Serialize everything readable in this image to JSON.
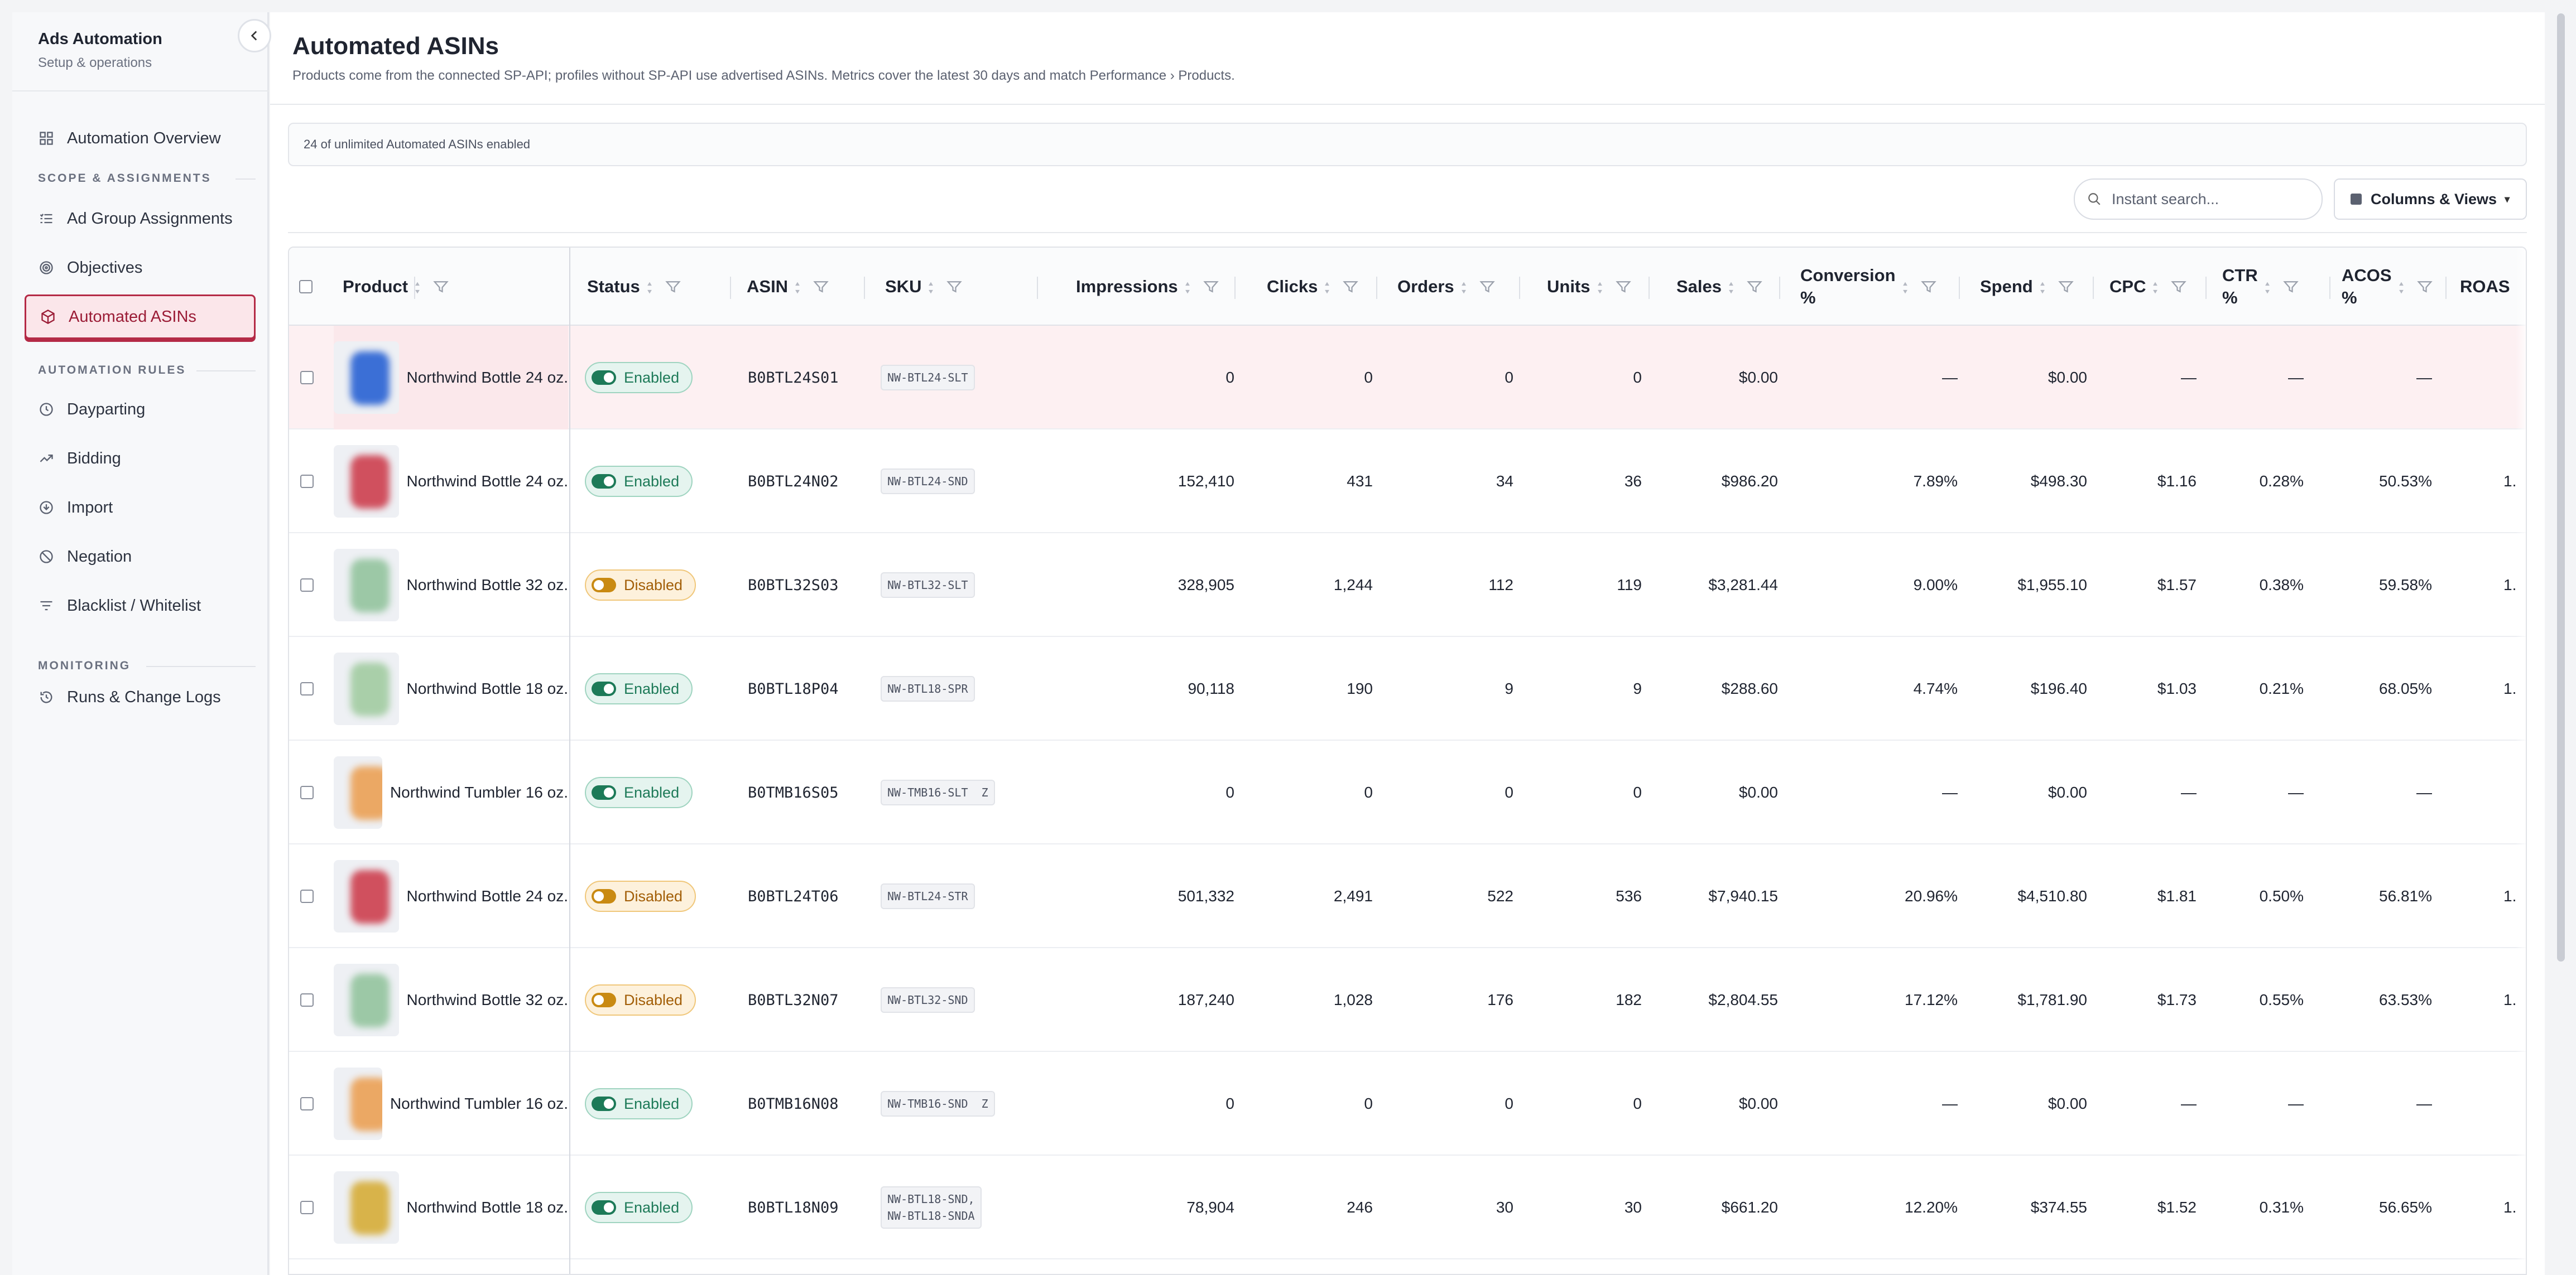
{
  "sidebar": {
    "title": "Ads Automation",
    "subtitle": "Setup & operations",
    "items": [
      {
        "label": "Automation Overview",
        "icon": "grid-icon"
      },
      {
        "label": "Ad Group Assignments",
        "icon": "list-icon"
      },
      {
        "label": "Objectives",
        "icon": "target-icon"
      },
      {
        "label": "Automated ASINs",
        "icon": "box-icon"
      },
      {
        "label": "Dayparting",
        "icon": "clock-icon"
      },
      {
        "label": "Bidding",
        "icon": "trend-icon"
      },
      {
        "label": "Import",
        "icon": "import-icon"
      },
      {
        "label": "Negation",
        "icon": "ban-icon"
      },
      {
        "label": "Blacklist / Whitelist",
        "icon": "filter-icon"
      },
      {
        "label": "Runs & Change Logs",
        "icon": "history-icon"
      }
    ],
    "sections": {
      "scope": "SCOPE & ASSIGNMENTS",
      "rules": "AUTOMATION RULES",
      "monitoring": "MONITORING"
    }
  },
  "page": {
    "title": "Automated ASINs",
    "subtitle": "Products come from the connected SP-API; profiles without SP-API use advertised ASINs. Metrics cover the latest 30 days and match Performance › Products."
  },
  "quota_text": "24 of unlimited Automated ASINs enabled",
  "search": {
    "placeholder": "Instant search..."
  },
  "columns_button": "Columns & Views",
  "table": {
    "headers": {
      "product": "Product",
      "status": "Status",
      "asin": "ASIN",
      "sku": "SKU",
      "impressions": "Impressions",
      "clicks": "Clicks",
      "orders": "Orders",
      "units": "Units",
      "sales": "Sales",
      "conversion_a": "Conversion",
      "conversion_b": "%",
      "spend": "Spend",
      "cpc": "CPC",
      "ctr_a": "CTR",
      "ctr_b": "%",
      "acos_a": "ACOS",
      "acos_b": "%",
      "roas": "ROAS"
    },
    "rows": [
      {
        "product": "Northwind Bottle 24 oz.",
        "status": "Enabled",
        "asin": "B0BTL24S01",
        "sku": "NW-BTL24-SLT",
        "impressions": "0",
        "clicks": "0",
        "orders": "0",
        "units": "0",
        "sales": "$0.00",
        "conversion": "—",
        "spend": "$0.00",
        "cpc": "—",
        "ctr": "—",
        "acos": "—",
        "roas": "",
        "thumb": "#3b6fd6"
      },
      {
        "product": "Northwind Bottle 24 oz.",
        "status": "Enabled",
        "asin": "B0BTL24N02",
        "sku": "NW-BTL24-SND",
        "impressions": "152,410",
        "clicks": "431",
        "orders": "34",
        "units": "36",
        "sales": "$986.20",
        "conversion": "7.89%",
        "spend": "$498.30",
        "cpc": "$1.16",
        "ctr": "0.28%",
        "acos": "50.53%",
        "roas": "1.",
        "thumb": "#d0505e"
      },
      {
        "product": "Northwind Bottle 32 oz.",
        "status": "Disabled",
        "asin": "B0BTL32S03",
        "sku": "NW-BTL32-SLT",
        "impressions": "328,905",
        "clicks": "1,244",
        "orders": "112",
        "units": "119",
        "sales": "$3,281.44",
        "conversion": "9.00%",
        "spend": "$1,955.10",
        "cpc": "$1.57",
        "ctr": "0.38%",
        "acos": "59.58%",
        "roas": "1.",
        "thumb": "#9cc8a6"
      },
      {
        "product": "Northwind Bottle 18 oz.",
        "status": "Enabled",
        "asin": "B0BTL18P04",
        "sku": "NW-BTL18-SPR",
        "impressions": "90,118",
        "clicks": "190",
        "orders": "9",
        "units": "9",
        "sales": "$288.60",
        "conversion": "4.74%",
        "spend": "$196.40",
        "cpc": "$1.03",
        "ctr": "0.21%",
        "acos": "68.05%",
        "roas": "1.",
        "thumb": "#a9cfa9"
      },
      {
        "product": "Northwind Tumbler 16 oz.",
        "status": "Enabled",
        "asin": "B0TMB16S05",
        "sku": "NW-TMB16-SLT  Z",
        "impressions": "0",
        "clicks": "0",
        "orders": "0",
        "units": "0",
        "sales": "$0.00",
        "conversion": "—",
        "spend": "$0.00",
        "cpc": "—",
        "ctr": "—",
        "acos": "—",
        "roas": "",
        "thumb": "#eba864"
      },
      {
        "product": "Northwind Bottle 24 oz.",
        "status": "Disabled",
        "asin": "B0BTL24T06",
        "sku": "NW-BTL24-STR",
        "impressions": "501,332",
        "clicks": "2,491",
        "orders": "522",
        "units": "536",
        "sales": "$7,940.15",
        "conversion": "20.96%",
        "spend": "$4,510.80",
        "cpc": "$1.81",
        "ctr": "0.50%",
        "acos": "56.81%",
        "roas": "1.",
        "thumb": "#d0505e"
      },
      {
        "product": "Northwind Bottle 32 oz.",
        "status": "Disabled",
        "asin": "B0BTL32N07",
        "sku": "NW-BTL32-SND",
        "impressions": "187,240",
        "clicks": "1,028",
        "orders": "176",
        "units": "182",
        "sales": "$2,804.55",
        "conversion": "17.12%",
        "spend": "$1,781.90",
        "cpc": "$1.73",
        "ctr": "0.55%",
        "acos": "63.53%",
        "roas": "1.",
        "thumb": "#9cc8a6"
      },
      {
        "product": "Northwind Tumbler 16 oz.",
        "status": "Enabled",
        "asin": "B0TMB16N08",
        "sku": "NW-TMB16-SND  Z",
        "impressions": "0",
        "clicks": "0",
        "orders": "0",
        "units": "0",
        "sales": "$0.00",
        "conversion": "—",
        "spend": "$0.00",
        "cpc": "—",
        "ctr": "—",
        "acos": "—",
        "roas": "",
        "thumb": "#eba864"
      },
      {
        "product": "Northwind Bottle 18 oz.",
        "status": "Enabled",
        "asin": "B0BTL18N09",
        "sku": "NW-BTL18-SND,\nNW-BTL18-SNDA",
        "impressions": "78,904",
        "clicks": "246",
        "orders": "30",
        "units": "30",
        "sales": "$661.20",
        "conversion": "12.20%",
        "spend": "$374.55",
        "cpc": "$1.52",
        "ctr": "0.31%",
        "acos": "56.65%",
        "roas": "1.",
        "thumb": "#d8b34a"
      }
    ]
  },
  "colors": {
    "accent": "#b42a46",
    "enabled": "#1d7a58",
    "disabled": "#a25e07"
  }
}
